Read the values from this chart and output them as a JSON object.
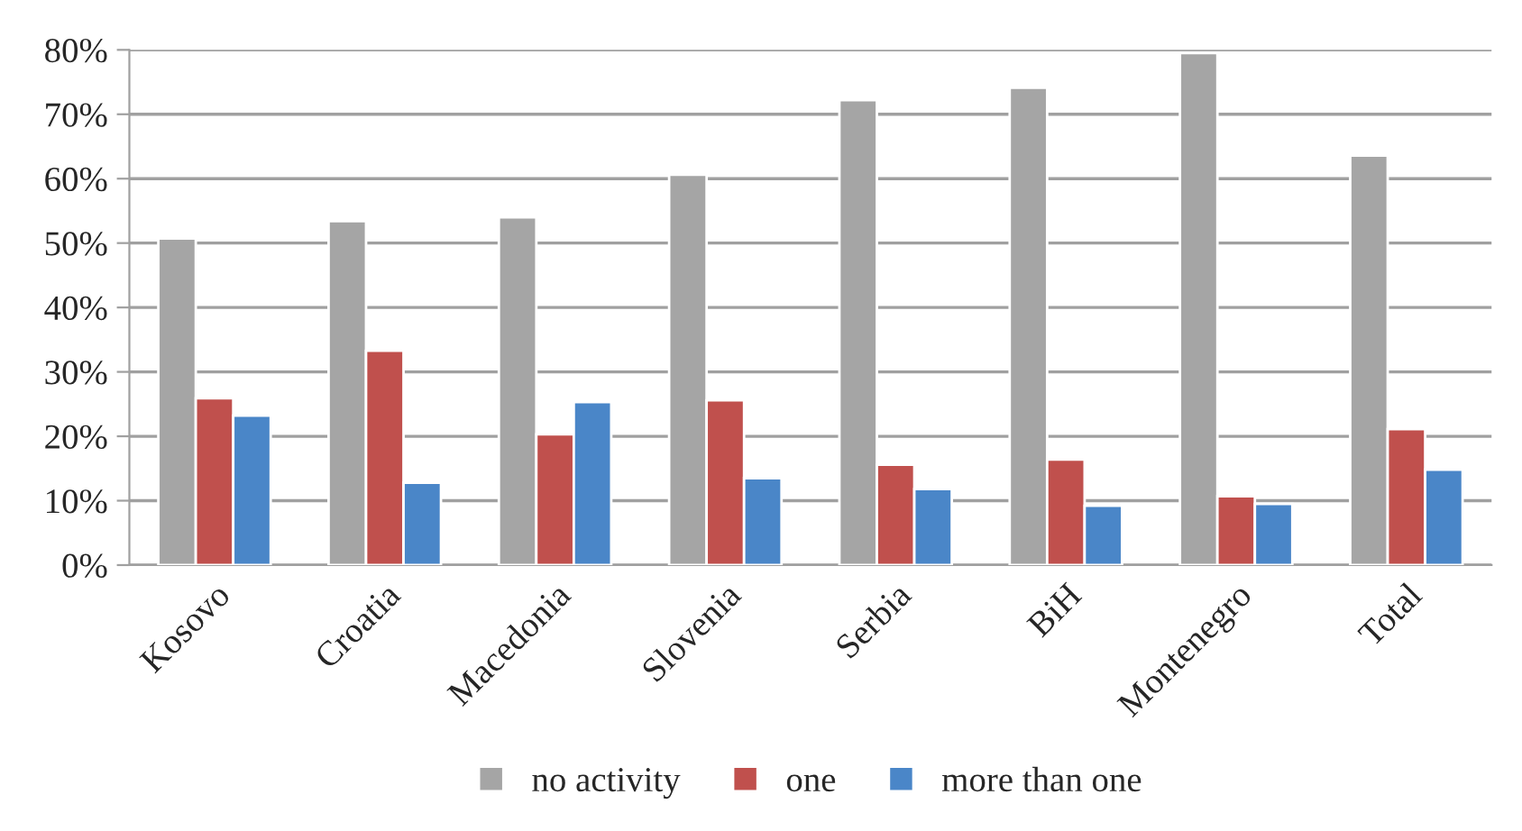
{
  "chart_data": {
    "type": "bar",
    "categories": [
      "Kosovo",
      "Croatia",
      "Macedonia",
      "Slovenia",
      "Serbia",
      "BiH",
      "Montenegro",
      "Total"
    ],
    "series": [
      {
        "name": "no activity",
        "color": "#a5a5a5",
        "values": [
          50.7,
          53.4,
          54.0,
          60.6,
          72.2,
          74.1,
          79.5,
          63.6
        ]
      },
      {
        "name": "one",
        "color": "#c0504d",
        "values": [
          25.9,
          33.3,
          20.3,
          25.6,
          15.6,
          16.4,
          10.7,
          21.1
        ]
      },
      {
        "name": "more than one",
        "color": "#4a86c8",
        "values": [
          23.2,
          12.8,
          25.3,
          13.5,
          11.8,
          9.2,
          9.5,
          14.8
        ]
      }
    ],
    "ylim": [
      0,
      80
    ],
    "yticks": [
      {
        "value": 0,
        "label": "0%"
      },
      {
        "value": 10,
        "label": "10%"
      },
      {
        "value": 20,
        "label": "20%"
      },
      {
        "value": 30,
        "label": "30%"
      },
      {
        "value": 40,
        "label": "40%"
      },
      {
        "value": 50,
        "label": "50%"
      },
      {
        "value": 60,
        "label": "60%"
      },
      {
        "value": 70,
        "label": "70%"
      },
      {
        "value": 80,
        "label": "80%"
      }
    ],
    "grid": "y",
    "legend": "bottom"
  }
}
